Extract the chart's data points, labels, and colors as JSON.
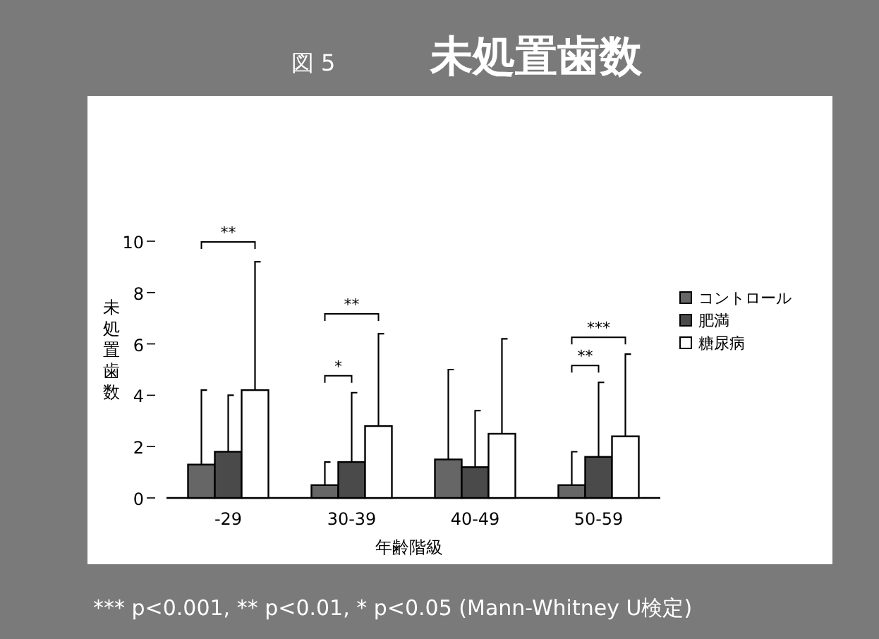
{
  "chart_data": {
    "type": "bar",
    "title": "未処置歯数",
    "ylabel": "未処置歯数",
    "xlabel": "年齢階級",
    "categories": [
      "-29",
      "30-39",
      "40-49",
      "50-59"
    ],
    "series": [
      {
        "name": "コントロール",
        "color": "#666666",
        "values": [
          1.3,
          0.5,
          1.5,
          0.5
        ],
        "errors": [
          [
            1.3,
            4.2
          ],
          [
            0.5,
            1.4
          ],
          [
            1.5,
            5.0
          ],
          [
            0.5,
            1.8
          ]
        ]
      },
      {
        "name": "肥満",
        "color": "#4a4a4a",
        "values": [
          1.8,
          1.4,
          1.2,
          1.6
        ],
        "errors": [
          [
            1.8,
            4.0
          ],
          [
            1.4,
            4.1
          ],
          [
            1.2,
            3.4
          ],
          [
            1.6,
            4.5
          ]
        ]
      },
      {
        "name": "糖尿病",
        "color": "#ffffff",
        "values": [
          4.2,
          2.8,
          2.5,
          2.4
        ],
        "errors": [
          [
            4.2,
            9.2
          ],
          [
            2.8,
            6.4
          ],
          [
            2.5,
            6.2
          ],
          [
            2.4,
            5.6
          ]
        ]
      }
    ],
    "ylim": [
      0,
      10
    ],
    "yticks": [
      0,
      2,
      4,
      6,
      8,
      10
    ],
    "legend": "right",
    "annotations": [
      "**",
      "*",
      "**",
      "**",
      "***",
      "図 5",
      "*** p<0.001, ** p<0.01, * p<0.05 (Mann-Whitney U検定)"
    ]
  }
}
